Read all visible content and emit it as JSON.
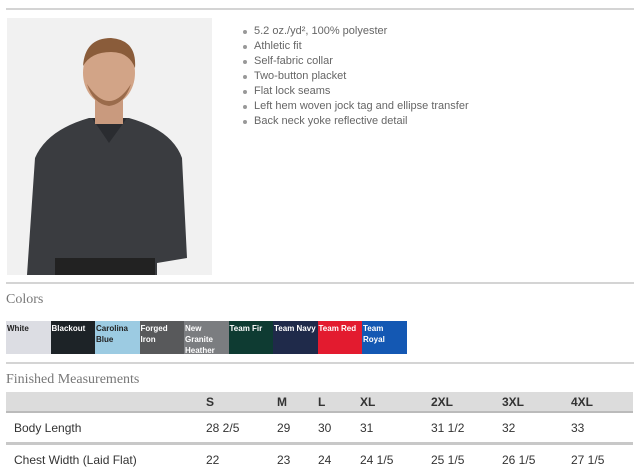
{
  "features": [
    "5.2 oz./yd², 100% polyester",
    "Athletic fit",
    "Self-fabric collar",
    "Two-button placket",
    "Flat lock seams",
    "Left hem woven jock tag and ellipse transfer",
    "Back neck yoke reflective detail"
  ],
  "colors_title": "Colors",
  "colors": [
    {
      "label": "White",
      "color": "#dcdde3",
      "text": "#222"
    },
    {
      "label": "Blackout",
      "color": "#1d2327",
      "text": "#fff"
    },
    {
      "label": "Carolina Blue",
      "color": "#9ccbe2",
      "text": "#222"
    },
    {
      "label": "Forged Iron",
      "color": "#58595b",
      "text": "#fff"
    },
    {
      "label": "New Granite Heather",
      "color": "#7b7d80",
      "text": "#fff"
    },
    {
      "label": "Team Fir",
      "color": "#0e3b32",
      "text": "#fff"
    },
    {
      "label": "Team Navy",
      "color": "#1f2a4a",
      "text": "#fff"
    },
    {
      "label": "Team Red",
      "color": "#e31b2f",
      "text": "#fff"
    },
    {
      "label": "Team Royal",
      "color": "#1458b3",
      "text": "#fff"
    }
  ],
  "measurements_title": "Finished Measurements",
  "table": {
    "headers": [
      "",
      "S",
      "M",
      "L",
      "XL",
      "2XL",
      "3XL",
      "4XL"
    ],
    "rows": [
      [
        "Body Length",
        "28 2/5",
        "29",
        "30",
        "31",
        "31 1/2",
        "32",
        "33"
      ],
      [
        "Chest Width (Laid Flat)",
        "22",
        "23",
        "24",
        "24 1/5",
        "25 1/5",
        "26 1/5",
        "27 1/5"
      ]
    ]
  }
}
